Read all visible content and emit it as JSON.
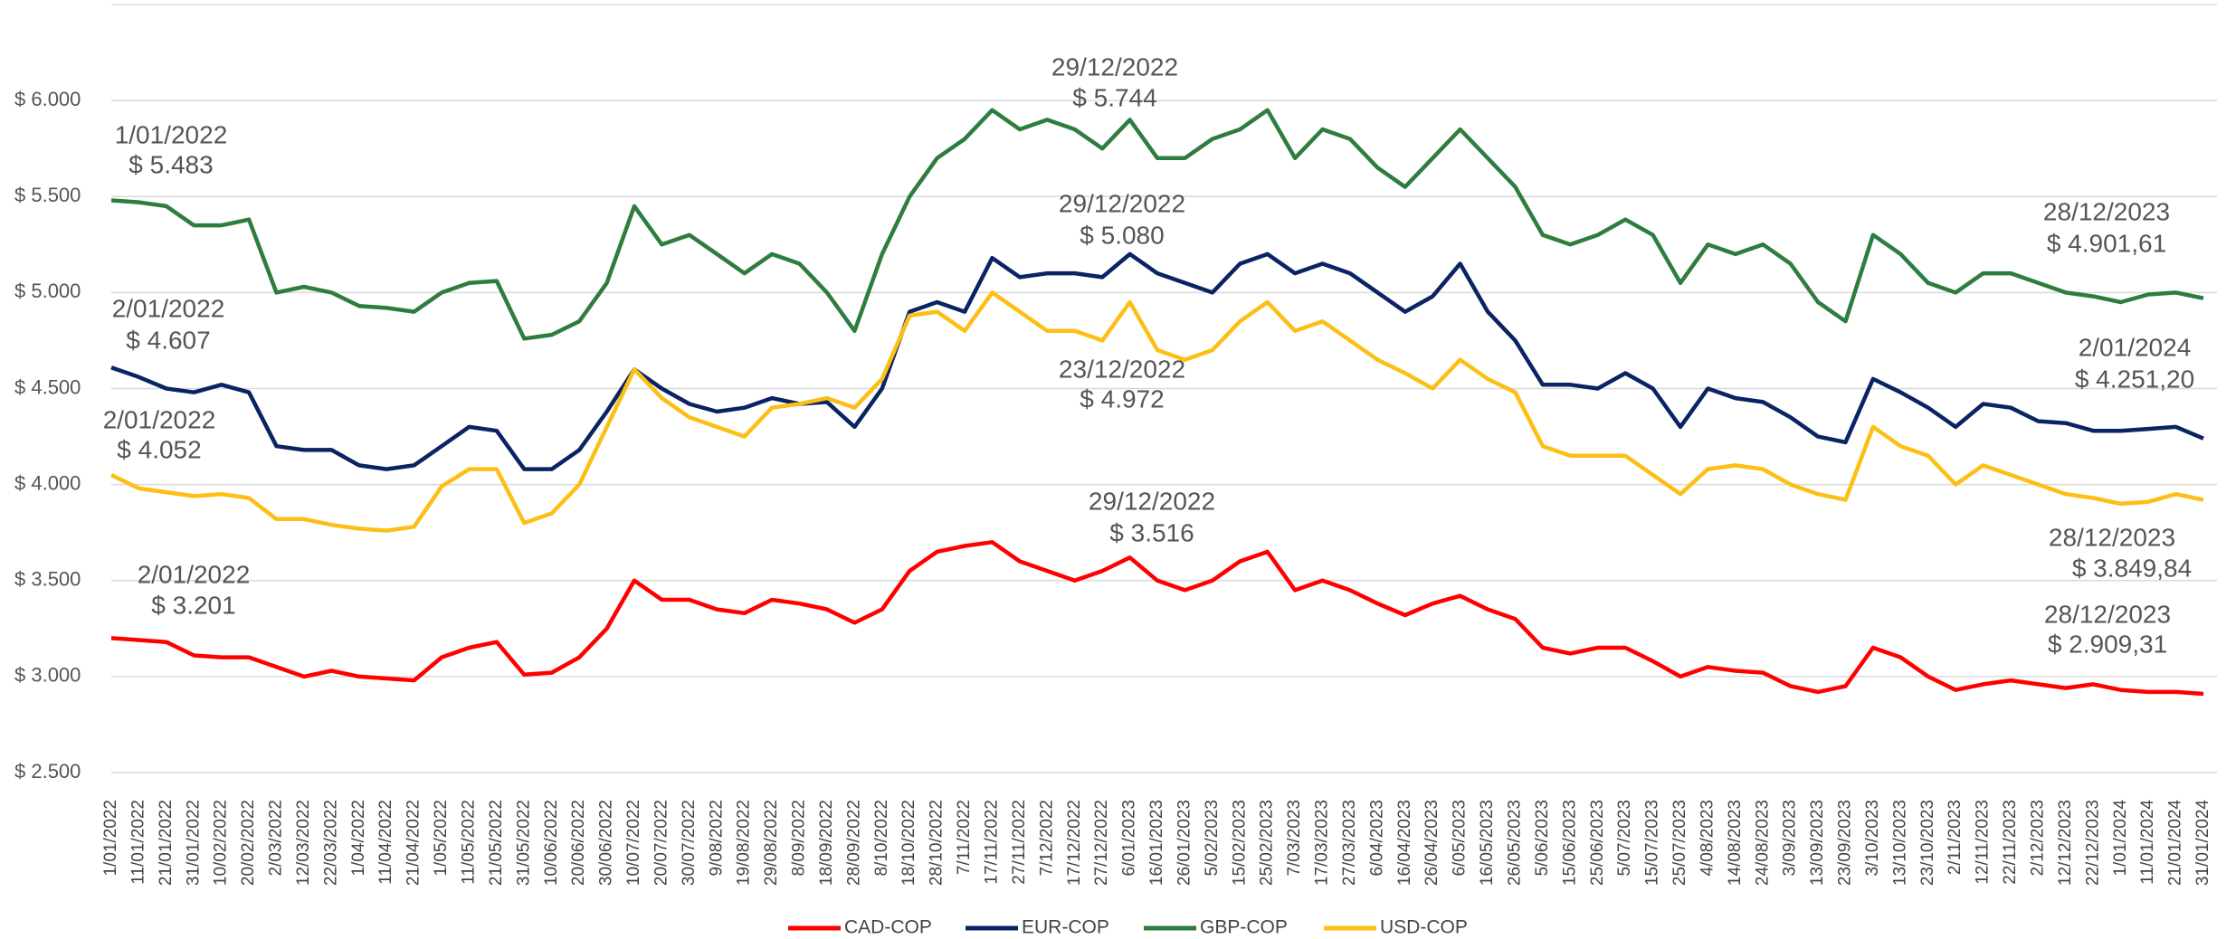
{
  "chart_data": {
    "type": "line",
    "categories": [
      "1/01/2022",
      "11/01/2022",
      "21/01/2022",
      "31/01/2022",
      "10/02/2022",
      "20/02/2022",
      "2/03/2022",
      "12/03/2022",
      "22/03/2022",
      "1/04/2022",
      "11/04/2022",
      "21/04/2022",
      "1/05/2022",
      "11/05/2022",
      "21/05/2022",
      "31/05/2022",
      "10/06/2022",
      "20/06/2022",
      "30/06/2022",
      "10/07/2022",
      "20/07/2022",
      "30/07/2022",
      "9/08/2022",
      "19/08/2022",
      "29/08/2022",
      "8/09/2022",
      "18/09/2022",
      "28/09/2022",
      "8/10/2022",
      "18/10/2022",
      "28/10/2022",
      "7/11/2022",
      "17/11/2022",
      "27/11/2022",
      "7/12/2022",
      "17/12/2022",
      "27/12/2022",
      "6/01/2023",
      "16/01/2023",
      "26/01/2023",
      "5/02/2023",
      "15/02/2023",
      "25/02/2023",
      "7/03/2023",
      "17/03/2023",
      "27/03/2023",
      "6/04/2023",
      "16/04/2023",
      "26/04/2023",
      "6/05/2023",
      "16/05/2023",
      "26/05/2023",
      "5/06/2023",
      "15/06/2023",
      "25/06/2023",
      "5/07/2023",
      "15/07/2023",
      "25/07/2023",
      "4/08/2023",
      "14/08/2023",
      "24/08/2023",
      "3/09/2023",
      "13/09/2023",
      "23/09/2023",
      "3/10/2023",
      "13/10/2023",
      "23/10/2023",
      "2/11/2023",
      "12/11/2023",
      "22/11/2023",
      "2/12/2023",
      "12/12/2023",
      "22/12/2023",
      "1/01/2024",
      "11/01/2024",
      "21/01/2024",
      "31/01/2024"
    ],
    "series": [
      {
        "name": "CAD-COP",
        "color": "#ff0000",
        "values": [
          3200,
          3190,
          3180,
          3110,
          3100,
          3100,
          3050,
          3000,
          3030,
          3000,
          2990,
          2980,
          3100,
          3150,
          3180,
          3010,
          3020,
          3100,
          3250,
          3500,
          3400,
          3400,
          3350,
          3330,
          3400,
          3380,
          3350,
          3280,
          3350,
          3550,
          3650,
          3680,
          3700,
          3600,
          3550,
          3500,
          3550,
          3620,
          3500,
          3450,
          3500,
          3600,
          3650,
          3450,
          3500,
          3450,
          3380,
          3320,
          3380,
          3420,
          3350,
          3300,
          3150,
          3120,
          3150,
          3150,
          3080,
          3000,
          3050,
          3030,
          3020,
          2950,
          2920,
          2950,
          3150,
          3100,
          3000,
          2930,
          2960,
          2980,
          2960,
          2940,
          2960,
          2930,
          2920,
          2920,
          2910
        ]
      },
      {
        "name": "EUR-COP",
        "color": "#0a2463",
        "values": [
          4610,
          4560,
          4500,
          4480,
          4520,
          4480,
          4200,
          4180,
          4180,
          4100,
          4080,
          4100,
          4200,
          4300,
          4280,
          4080,
          4080,
          4180,
          4380,
          4600,
          4500,
          4420,
          4380,
          4400,
          4450,
          4420,
          4430,
          4300,
          4500,
          4900,
          4950,
          4900,
          5180,
          5080,
          5100,
          5100,
          5080,
          5200,
          5100,
          5050,
          5000,
          5150,
          5200,
          5100,
          5150,
          5100,
          5000,
          4900,
          4980,
          5150,
          4900,
          4750,
          4520,
          4520,
          4500,
          4580,
          4500,
          4300,
          4500,
          4450,
          4430,
          4350,
          4250,
          4220,
          4550,
          4480,
          4400,
          4300,
          4420,
          4400,
          4330,
          4320,
          4280,
          4280,
          4290,
          4300,
          4240
        ]
      },
      {
        "name": "GBP-COP",
        "color": "#2e7d3e",
        "values": [
          5480,
          5470,
          5450,
          5350,
          5350,
          5380,
          5000,
          5030,
          5000,
          4930,
          4920,
          4900,
          5000,
          5050,
          5060,
          4760,
          4780,
          4850,
          5050,
          5450,
          5250,
          5300,
          5200,
          5100,
          5200,
          5150,
          5000,
          4800,
          5200,
          5500,
          5700,
          5800,
          5950,
          5850,
          5900,
          5850,
          5750,
          5900,
          5700,
          5700,
          5800,
          5850,
          5950,
          5700,
          5850,
          5800,
          5650,
          5550,
          5700,
          5850,
          5700,
          5550,
          5300,
          5250,
          5300,
          5380,
          5300,
          5050,
          5250,
          5200,
          5250,
          5150,
          4950,
          4850,
          5300,
          5200,
          5050,
          5000,
          5100,
          5100,
          5050,
          5000,
          4980,
          4950,
          4990,
          5000,
          4970
        ]
      },
      {
        "name": "USD-COP",
        "color": "#fbbf16",
        "values": [
          4050,
          3980,
          3960,
          3940,
          3950,
          3930,
          3820,
          3820,
          3790,
          3770,
          3760,
          3780,
          3990,
          4080,
          4080,
          3800,
          3850,
          4000,
          4300,
          4600,
          4450,
          4350,
          4300,
          4250,
          4400,
          4420,
          4450,
          4400,
          4550,
          4880,
          4900,
          4800,
          5000,
          4900,
          4800,
          4800,
          4750,
          4950,
          4700,
          4650,
          4700,
          4850,
          4950,
          4800,
          4850,
          4750,
          4650,
          4580,
          4500,
          4650,
          4550,
          4480,
          4200,
          4150,
          4150,
          4150,
          4050,
          3950,
          4080,
          4100,
          4080,
          4000,
          3950,
          3920,
          4300,
          4200,
          4150,
          4000,
          4100,
          4050,
          4000,
          3950,
          3930,
          3900,
          3910,
          3950,
          3920
        ]
      }
    ],
    "ylim": [
      2500,
      6500
    ],
    "yticks": [
      {
        "value": 2500,
        "label": "$ 2.500"
      },
      {
        "value": 3000,
        "label": "$ 3.000"
      },
      {
        "value": 3500,
        "label": "$ 3.500"
      },
      {
        "value": 4000,
        "label": "$ 4.000"
      },
      {
        "value": 4500,
        "label": "$ 4.500"
      },
      {
        "value": 5000,
        "label": "$ 5.000"
      },
      {
        "value": 5500,
        "label": "$ 5.500"
      },
      {
        "value": 6000,
        "label": "$ 6.000"
      }
    ],
    "grid": true,
    "legend": "bottom",
    "annotations": [
      {
        "date": "1/01/2022",
        "value": "$ 5.483"
      },
      {
        "date": "2/01/2022",
        "value": "$ 4.607"
      },
      {
        "date": "2/01/2022",
        "value": "$ 4.052"
      },
      {
        "date": "2/01/2022",
        "value": "$ 3.201"
      },
      {
        "date": "29/12/2022",
        "value": "$ 5.744"
      },
      {
        "date": "29/12/2022",
        "value": "$ 5.080"
      },
      {
        "date": "23/12/2022",
        "value": "$ 4.972"
      },
      {
        "date": "29/12/2022",
        "value": "$ 3.516"
      },
      {
        "date": "28/12/2023",
        "value": "$ 4.901,61"
      },
      {
        "date": "2/01/2024",
        "value": "$ 4.251,20"
      },
      {
        "date": "28/12/2023",
        "value": "$ 3.849,84"
      },
      {
        "date": "28/12/2023",
        "value": "$ 2.909,31"
      }
    ]
  }
}
